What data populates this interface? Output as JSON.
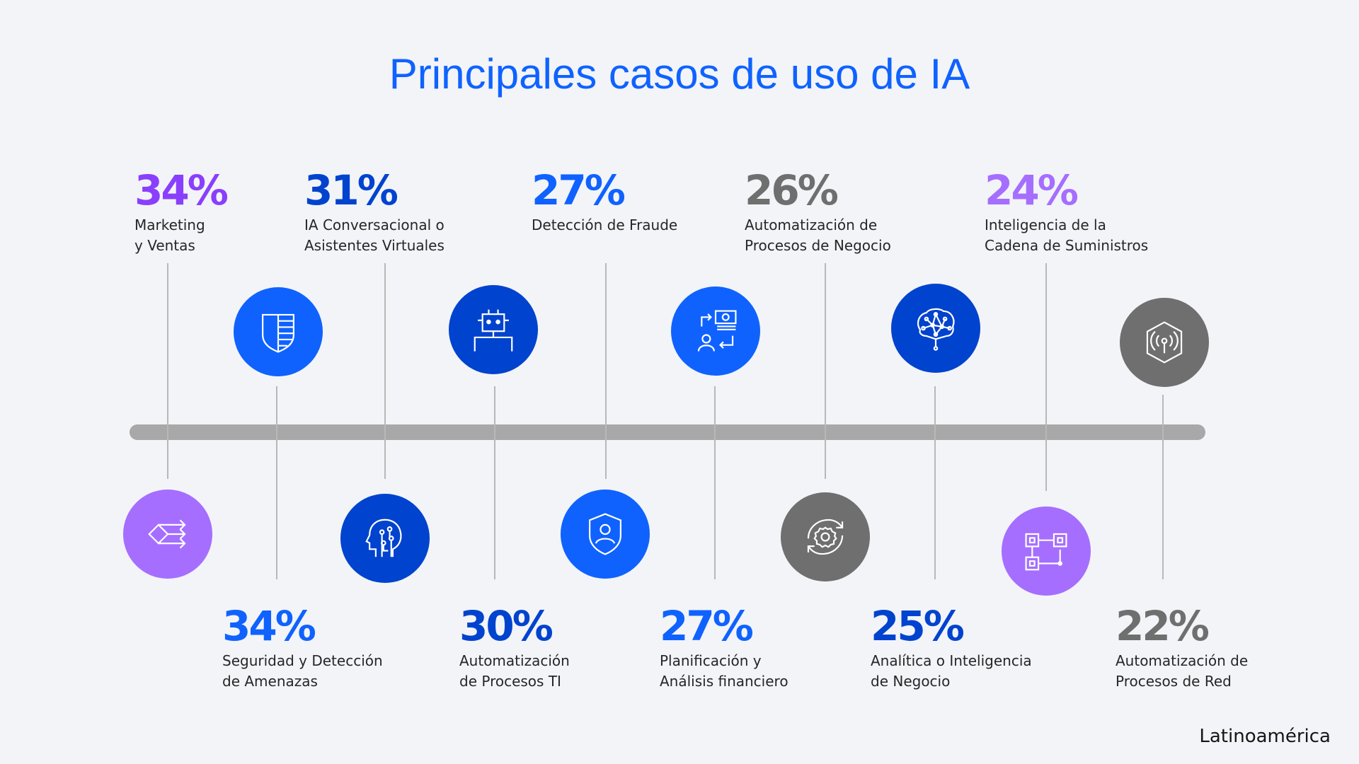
{
  "title": "Principales casos de uso de IA",
  "region": "Latinoamérica",
  "colors": {
    "purple": "#8a3ffc",
    "light_purple": "#a56eff",
    "blue": "#0f62fe",
    "dark_blue": "#0043ce",
    "gray": "#6f6f6f"
  },
  "items": [
    {
      "pct": "34%",
      "line1": "Marketing",
      "line2": "y Ventas",
      "color": "#8a3ffc",
      "circle": "#a56eff",
      "icon": "arrows-split-icon"
    },
    {
      "pct": "34%",
      "line1": "Seguridad y Detección",
      "line2": "de Amenazas",
      "color": "#0f62fe",
      "circle": "#0f62fe",
      "icon": "shield-striped-icon"
    },
    {
      "pct": "31%",
      "line1": "IA Conversacional o",
      "line2": "Asistentes Virtuales",
      "color": "#0043ce",
      "circle": "#0043ce",
      "icon": "ai-head-icon"
    },
    {
      "pct": "30%",
      "line1": "Automatización",
      "line2": "de Procesos TI",
      "color": "#0043ce",
      "circle": "#0043ce",
      "icon": "robot-icon"
    },
    {
      "pct": "27%",
      "line1": "Detección de Fraude",
      "line2": "",
      "color": "#0f62fe",
      "circle": "#0f62fe",
      "icon": "shield-user-icon"
    },
    {
      "pct": "27%",
      "line1": "Planificación y",
      "line2": "Análisis financiero",
      "color": "#0f62fe",
      "circle": "#0f62fe",
      "icon": "finance-exchange-icon"
    },
    {
      "pct": "26%",
      "line1": "Automatización de",
      "line2": "Procesos de Negocio",
      "color": "#6f6f6f",
      "circle": "#6f6f6f",
      "icon": "gear-cycle-icon"
    },
    {
      "pct": "25%",
      "line1": "Analítica o Inteligencia",
      "line2": "de Negocio",
      "color": "#0043ce",
      "circle": "#0043ce",
      "icon": "neural-brain-icon"
    },
    {
      "pct": "24%",
      "line1": "Inteligencia de la",
      "line2": "Cadena de Suministros",
      "color": "#a56eff",
      "circle": "#a56eff",
      "icon": "supply-chain-icon"
    },
    {
      "pct": "22%",
      "line1": "Automatización de",
      "line2": "Procesos de Red",
      "color": "#6f6f6f",
      "circle": "#6f6f6f",
      "icon": "network-hexagon-icon"
    }
  ]
}
